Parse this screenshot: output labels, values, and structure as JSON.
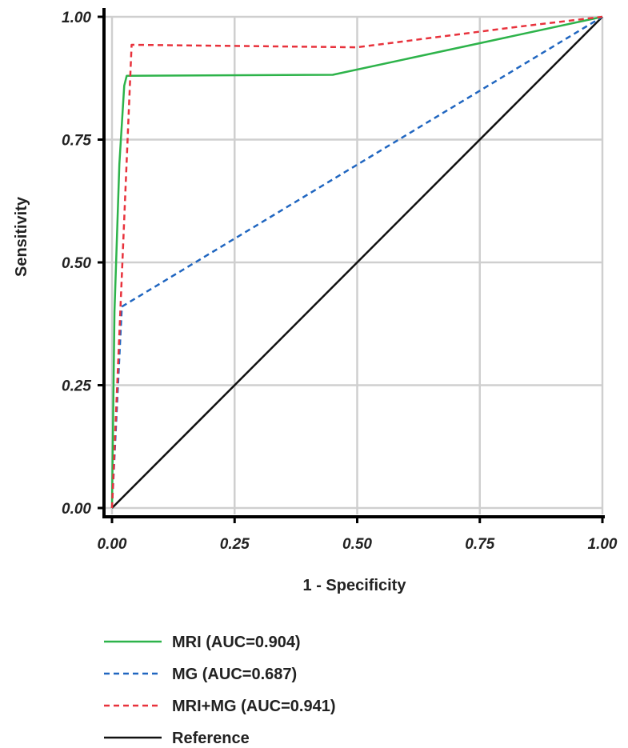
{
  "chart_data": {
    "type": "line",
    "title": "",
    "xlabel": "1 - Specificity",
    "ylabel": "Sensitivity",
    "xlim": [
      0,
      1
    ],
    "ylim": [
      0,
      1
    ],
    "grid": true,
    "legend_position": "bottom-left",
    "x_ticks": [
      "0.00",
      "0.25",
      "0.50",
      "0.75",
      "1.00"
    ],
    "y_ticks": [
      "0.00",
      "0.25",
      "0.50",
      "0.75",
      "1.00"
    ],
    "series": [
      {
        "name": "MRI (AUC=0.904)",
        "color": "#2db34a",
        "dash": "solid",
        "points": [
          [
            0,
            0
          ],
          [
            0.005,
            0.4
          ],
          [
            0.015,
            0.7
          ],
          [
            0.025,
            0.86
          ],
          [
            0.03,
            0.88
          ],
          [
            0.45,
            0.882
          ],
          [
            1,
            1
          ]
        ]
      },
      {
        "name": "MG (AUC=0.687)",
        "color": "#2066c0",
        "dash": "dashed",
        "points": [
          [
            0,
            0
          ],
          [
            0.02,
            0.41
          ],
          [
            1,
            1
          ]
        ]
      },
      {
        "name": "MRI+MG (AUC=0.941)",
        "color": "#e8323c",
        "dash": "dashed",
        "points": [
          [
            0,
            0
          ],
          [
            0.04,
            0.943
          ],
          [
            0.5,
            0.938
          ],
          [
            0.83,
            0.98
          ],
          [
            1,
            1
          ]
        ]
      },
      {
        "name": "Reference",
        "color": "#111111",
        "dash": "solid",
        "points": [
          [
            0,
            0
          ],
          [
            1,
            1
          ]
        ]
      }
    ]
  }
}
